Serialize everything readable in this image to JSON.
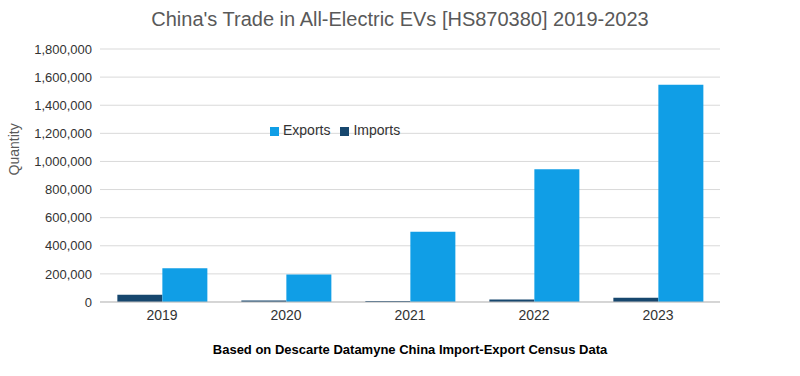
{
  "chart_data": {
    "type": "bar",
    "title": "China's Trade in All-Electric EVs [HS870380] 2019-2023",
    "x_label": "Based on Descarte Datamyne China Import-Export Census Data",
    "y_label": "Quantity",
    "categories": [
      "2019",
      "2020",
      "2021",
      "2022",
      "2023"
    ],
    "series": [
      {
        "name": "Imports",
        "color": "#17476e",
        "values": [
          52000,
          10000,
          8000,
          17000,
          30000
        ]
      },
      {
        "name": "Exports",
        "color": "#109ee6",
        "values": [
          240000,
          195000,
          500000,
          945000,
          1545000
        ]
      }
    ],
    "ylim": [
      0,
      1800000
    ],
    "yticks": [
      0,
      {
        "value": 200000,
        "label": "200,000"
      },
      {
        "value": 400000,
        "label": "400,000"
      },
      {
        "value": 600000,
        "label": "600,000"
      },
      {
        "value": 800000,
        "label": "800,000"
      },
      {
        "value": 1000000,
        "label": "1,000,000"
      },
      {
        "value": 1200000,
        "label": "1,200,000"
      },
      {
        "value": 1400000,
        "label": "1,400,000"
      },
      {
        "value": 1600000,
        "label": "1,600,000"
      },
      {
        "value": 1800000,
        "label": "1,800,000"
      }
    ],
    "grid": true,
    "legend": "upper center"
  }
}
